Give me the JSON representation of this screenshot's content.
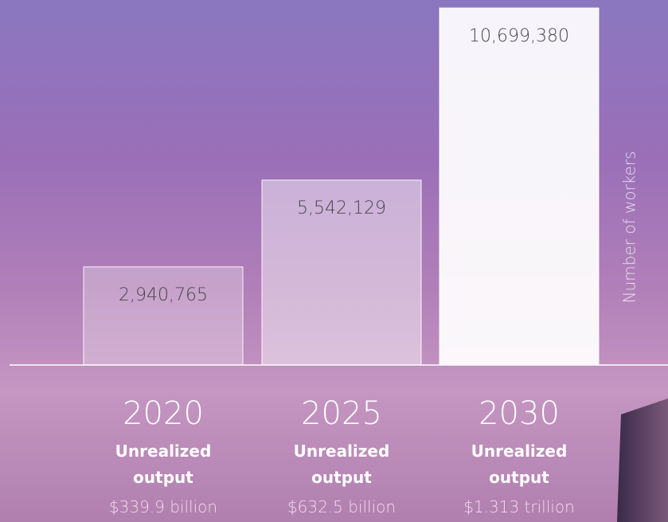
{
  "chart_data": {
    "type": "bar",
    "categories": [
      "2020",
      "2025",
      "2030"
    ],
    "values": [
      2940765,
      5542129,
      10699380
    ],
    "value_labels": [
      "2,940,765",
      "5,542,129",
      "10,699,380"
    ],
    "colors": [
      "rgba(255,255,255,0.28)",
      "rgba(255,255,255,0.45)",
      "rgba(255,255,255,0.93)"
    ],
    "y_label": "Number of workers",
    "category_notes": [
      "Unrealized output",
      "Unrealized output",
      "Unrealized output"
    ],
    "output_labels": [
      "$339.9 billion",
      "$632.5 billion",
      "$1.313 trillion"
    ]
  }
}
